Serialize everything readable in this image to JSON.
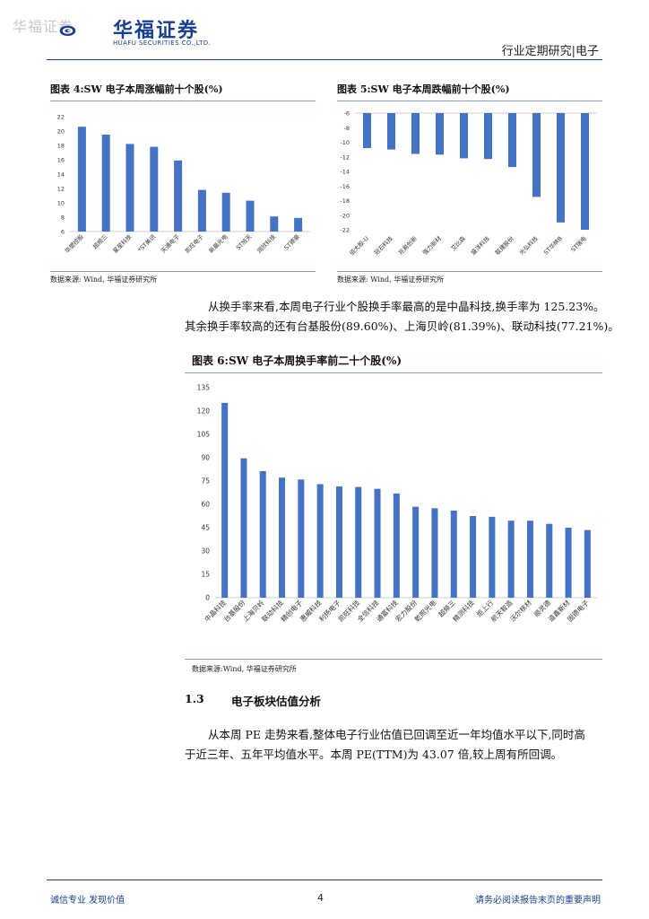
{
  "header": {
    "watermark": "华福证券",
    "logo_cn": "华福证券",
    "logo_en": "HUAFU SECURITIES CO.,LTD.",
    "report_type": "行业定期研究|电子",
    "brand_color": "#1a3f8f"
  },
  "fig4": {
    "title": "图表 4:SW 电子本周涨幅前十个股(%)",
    "source": "数据来源: Wind, 华福证券研究所"
  },
  "fig5": {
    "title": "图表 5:SW 电子本周跌幅前十个股(%)",
    "source": "数据来源: Wind, 华福证券研究所"
  },
  "fig6": {
    "title": "图表 6:SW 电子本周换手率前二十个股(%)",
    "source": "数据来源:Wind, 华福证券研究所"
  },
  "body": {
    "para1_line1": "从换手率来看,本周电子行业个股换手率最高的是中晶科技,换手率为 125.23%。",
    "para1_line2": "其余换手率较高的还有台基股份(89.60%)、上海贝岭(81.39%)、联动科技(77.21%)。",
    "section_number": "1.3",
    "section_title": "电子板块估值分析",
    "para2_line1": "从本周 PE 走势来看,整体电子行业估值已回调至近一年均值水平以下,同时高",
    "para2_line2": "于近三年、五年平均值水平。本周 PE(TTM)为 43.07 倍,较上周有所回调。"
  },
  "footer": {
    "left": "诚信专业 发现价值",
    "page": "4",
    "right": "请务必阅读报告末页的重要声明"
  },
  "chart_data": [
    {
      "type": "bar",
      "bar_color": "#4472c4",
      "categories": [
        "华塑控股",
        "超频三",
        "星星科技",
        "*ST美讯",
        "天通电子",
        "凯旺电子",
        "新晨光电",
        "ST旭天",
        "润欣科技",
        "ST德豪"
      ],
      "values": [
        20.6,
        19.5,
        18.2,
        17.8,
        15.9,
        11.8,
        11.4,
        10.3,
        8.1,
        7.9
      ],
      "ylim": [
        6,
        22
      ],
      "yticks": [
        6,
        8,
        10,
        12,
        14,
        16,
        18,
        20,
        22
      ]
    },
    {
      "type": "bar",
      "bar_color": "#4472c4",
      "categories": [
        "佰大股-U",
        "冠石科技",
        "兆易创新",
        "强力新材",
        "艾比森",
        "盛洋科技",
        "联建股份",
        "光弘科技",
        "ST华映B",
        "ST瑞电"
      ],
      "values": [
        -10.8,
        -11.0,
        -11.6,
        -11.7,
        -12.2,
        -12.3,
        -13.4,
        -17.5,
        -21.0,
        -22.0
      ],
      "ylim": [
        -22,
        -6
      ],
      "yticks": [
        -6,
        -8,
        -10,
        -12,
        -14,
        -16,
        -18,
        -20,
        -22
      ]
    },
    {
      "type": "bar",
      "bar_color": "#4472c4",
      "categories": [
        "中晶科技",
        "台基股份",
        "上海贝岭",
        "联动科技",
        "精创电子",
        "惠威科技",
        "利扬电子",
        "凯旺科技",
        "全信科技",
        "通富科技",
        "宏力股份",
        "乾照光电",
        "超频三",
        "精测科技",
        "炬上行",
        "航天智造",
        "沃尔核材",
        "顺灵德",
        "道鑫新材",
        "固德电子"
      ],
      "values": [
        125.23,
        89.6,
        81.39,
        77.21,
        76.0,
        73.0,
        71.5,
        71.2,
        70.0,
        67.0,
        58.5,
        57.5,
        56.0,
        52.5,
        52.0,
        49.5,
        49.5,
        47.5,
        45.0,
        43.5
      ],
      "ylim": [
        0,
        135
      ],
      "yticks": [
        0,
        15,
        30,
        45,
        60,
        75,
        90,
        105,
        120,
        135
      ]
    }
  ]
}
